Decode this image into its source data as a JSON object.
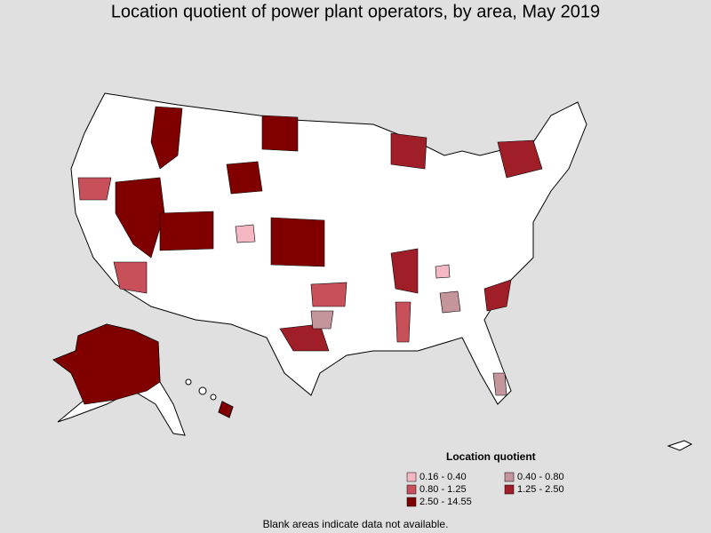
{
  "title": "Location quotient of power plant operators, by area, May 2019",
  "legend": {
    "title": "Location quotient",
    "items": [
      {
        "label": "0.16 - 0.40",
        "color": "#f5b8c2"
      },
      {
        "label": "0.40 - 0.80",
        "color": "#c4959a"
      },
      {
        "label": "0.80 - 1.25",
        "color": "#c8505a"
      },
      {
        "label": "1.25 - 2.50",
        "color": "#a01e28"
      },
      {
        "label": "2.50 - 14.55",
        "color": "#800000"
      }
    ]
  },
  "footnote": "Blank areas indicate data not available."
}
